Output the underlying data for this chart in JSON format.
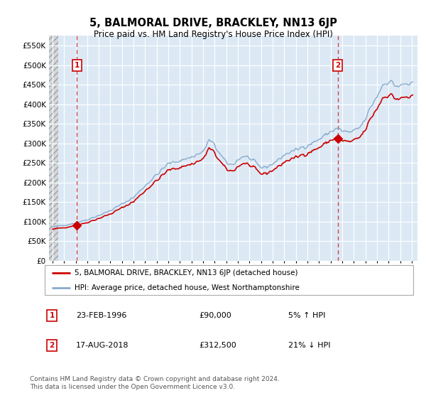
{
  "title": "5, BALMORAL DRIVE, BRACKLEY, NN13 6JP",
  "subtitle": "Price paid vs. HM Land Registry's House Price Index (HPI)",
  "ylim": [
    0,
    575000
  ],
  "yticks": [
    0,
    50000,
    100000,
    150000,
    200000,
    250000,
    300000,
    350000,
    400000,
    450000,
    500000,
    550000
  ],
  "ytick_labels": [
    "£0",
    "£50K",
    "£100K",
    "£150K",
    "£200K",
    "£250K",
    "£300K",
    "£350K",
    "£400K",
    "£450K",
    "£500K",
    "£550K"
  ],
  "background_color": "#ffffff",
  "plot_bg_color": "#dce9f5",
  "grid_color": "#ffffff",
  "line1_color": "#cc0000",
  "line2_color": "#88aacc",
  "marker_color": "#cc0000",
  "vline_color": "#cc3333",
  "annotation_box_color": "#cc0000",
  "legend_label1": "5, BALMORAL DRIVE, BRACKLEY, NN13 6JP (detached house)",
  "legend_label2": "HPI: Average price, detached house, West Northamptonshire",
  "sale1_date": "23-FEB-1996",
  "sale1_price": "£90,000",
  "sale1_hpi": "5% ↑ HPI",
  "sale2_date": "17-AUG-2018",
  "sale2_price": "£312,500",
  "sale2_hpi": "21% ↓ HPI",
  "footer": "Contains HM Land Registry data © Crown copyright and database right 2024.\nThis data is licensed under the Open Government Licence v3.0.",
  "sale1_x": 1996.12,
  "sale1_y": 90000,
  "sale2_x": 2018.62,
  "sale2_y": 312500,
  "xlim_left": 1993.7,
  "xlim_right": 2025.5
}
